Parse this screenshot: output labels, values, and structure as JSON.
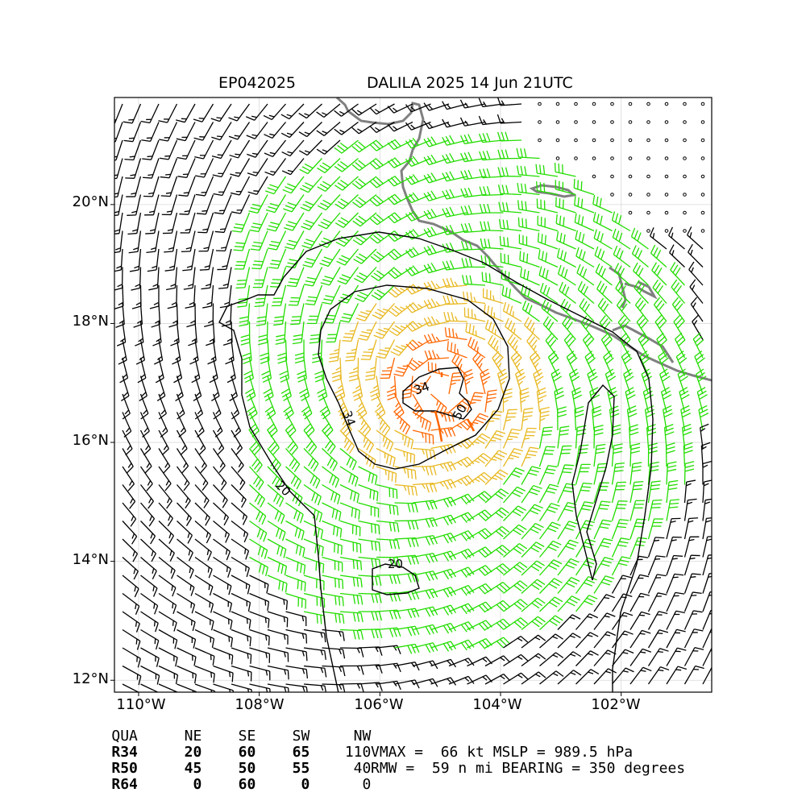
{
  "header": {
    "storm_id": "EP042025",
    "storm_title": "DALILA 2025 14 Jun 21UTC"
  },
  "axes": {
    "lat_labels": [
      "20°N",
      "18°N",
      "16°N",
      "14°N",
      "12°N"
    ],
    "lon_labels": [
      "110°W",
      "108°W",
      "106°W",
      "104°W",
      "102°W"
    ],
    "lon_range": [
      -110.4,
      -100.5
    ],
    "lat_range": [
      11.8,
      21.8
    ],
    "grid": true
  },
  "center": {
    "lon": -105.0,
    "lat": 16.9
  },
  "contour_labels": [
    "20",
    "34",
    "50",
    "20",
    "34"
  ],
  "colors": {
    "calm": "#000000",
    "tropical_storm": "#22dd00",
    "strong": "#e8b820",
    "hurricane": "#ff6600",
    "coastline": "#808080"
  },
  "radii_table": {
    "header": [
      "QUA",
      "NE",
      "SE",
      "SW",
      "NW"
    ],
    "rows": [
      [
        "R34",
        "20",
        "60",
        "65",
        "110"
      ],
      [
        "R50",
        "45",
        "50",
        "55",
        "40"
      ],
      [
        "R64",
        "0",
        "60",
        "0",
        "0"
      ]
    ]
  },
  "summary": {
    "line1": "VMAX =  66 kt MSLP = 989.5 hPa",
    "line2": "RMW =  59 n mi BEARING = 350 degrees"
  }
}
